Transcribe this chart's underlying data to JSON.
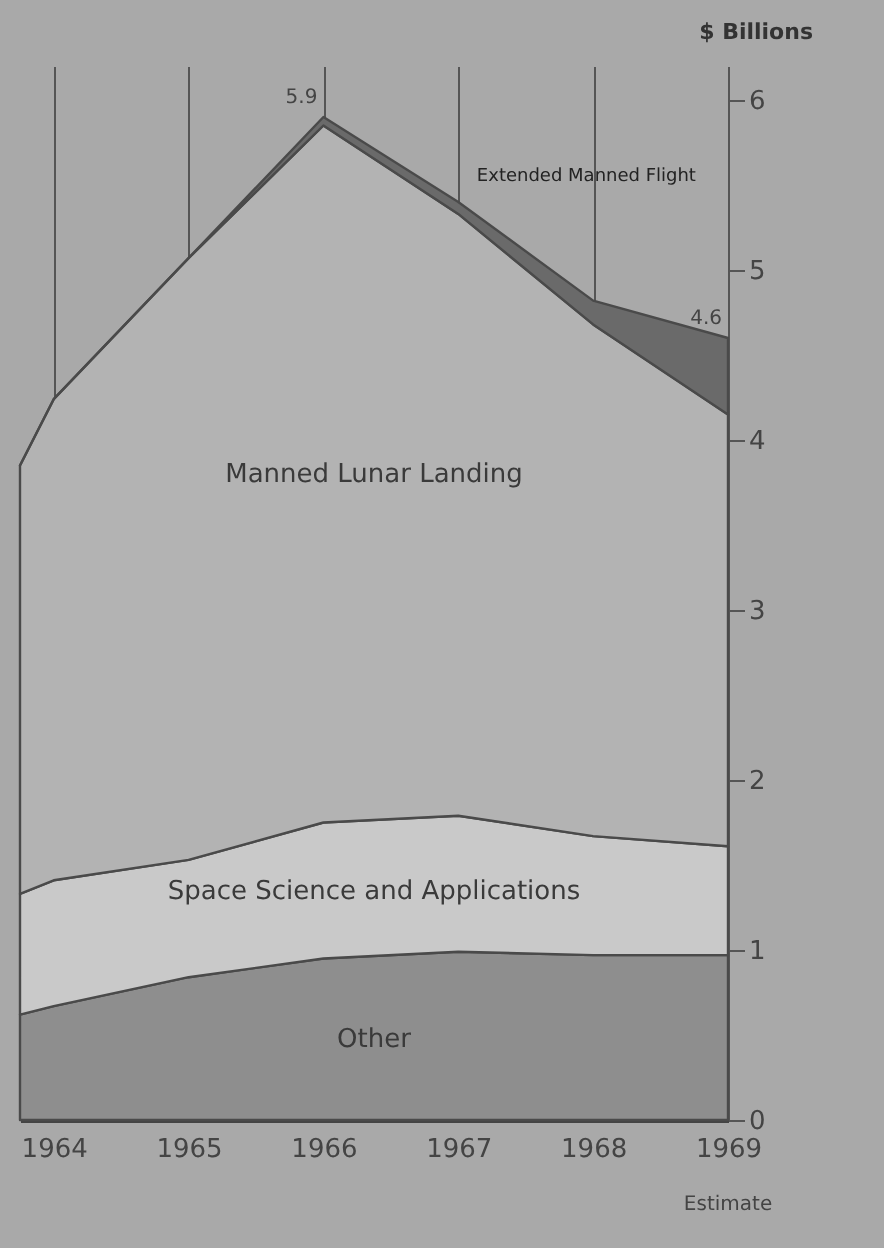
{
  "chart_data": {
    "type": "area",
    "stacked": true,
    "x": [
      1963.75,
      1964,
      1965,
      1966,
      1967,
      1968,
      1969
    ],
    "series": [
      {
        "name": "Other",
        "color": "#8e8e8e",
        "values": [
          0.62,
          0.67,
          0.84,
          0.95,
          0.99,
          0.97,
          0.97
        ]
      },
      {
        "name": "Space Science and Applications",
        "color": "#c9c9c9",
        "values": [
          0.71,
          0.74,
          0.69,
          0.8,
          0.8,
          0.7,
          0.64
        ]
      },
      {
        "name": "Manned Lunar Landing",
        "color": "#b3b3b3",
        "values": [
          2.52,
          2.83,
          3.54,
          4.1,
          3.54,
          3.01,
          2.54
        ]
      },
      {
        "name": "Extended Manned Flight",
        "color": "#6a6a6a",
        "values": [
          0,
          0,
          0,
          0.05,
          0.07,
          0.14,
          0.45
        ]
      }
    ],
    "ylabel": "$ Billions",
    "xlim": [
      1963.75,
      1969
    ],
    "xticks": [
      1964,
      1965,
      1966,
      1967,
      1968,
      1969
    ],
    "ylim": [
      0,
      6.2
    ],
    "yticks": [
      0,
      1,
      2,
      3,
      4,
      5,
      6
    ],
    "grid": "x",
    "legend": false,
    "annotations": [
      {
        "text": "5.9",
        "x": 1966,
        "y": 5.9
      },
      {
        "text": "4.6",
        "x": 1969,
        "y": 4.6
      },
      "Estimate"
    ]
  }
}
